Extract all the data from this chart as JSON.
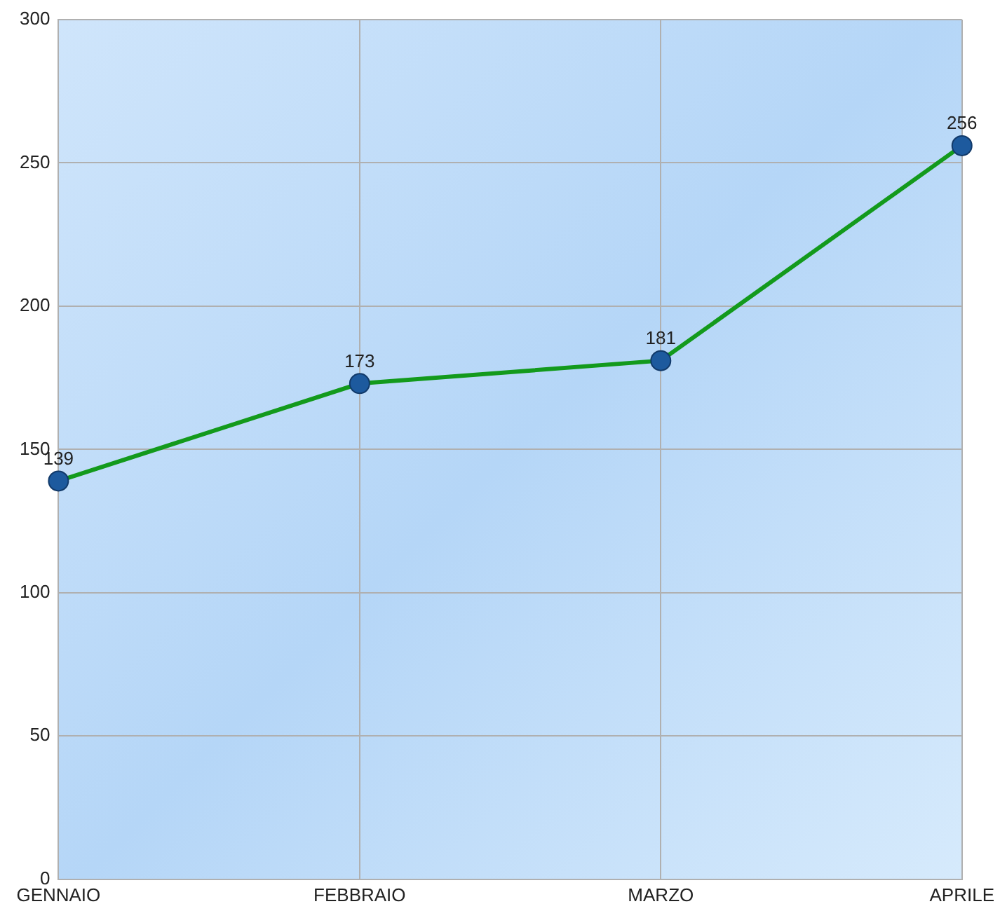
{
  "chart_data": {
    "type": "line",
    "categories": [
      "GENNAIO",
      "FEBBRAIO",
      "MARZO",
      "APRILE"
    ],
    "series": [
      {
        "color": "#139a1c",
        "values": [
          139,
          173,
          181,
          256
        ]
      }
    ],
    "ylim": [
      0,
      300
    ],
    "yticks": [
      0,
      50,
      100,
      150,
      200,
      250,
      300
    ],
    "grid": true,
    "legend": false,
    "marker": "circle",
    "line_style": "solid",
    "data_labels": true
  }
}
